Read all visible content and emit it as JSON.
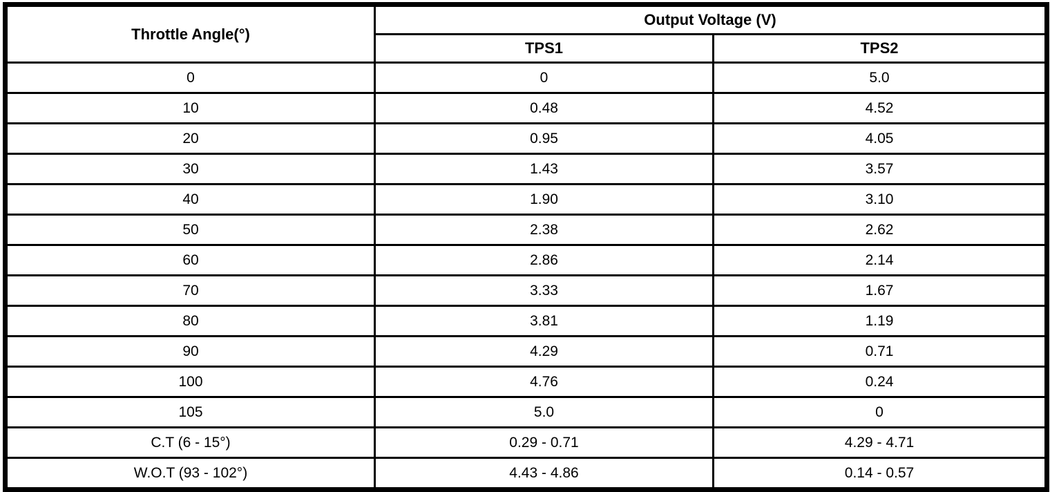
{
  "table": {
    "angle_header": "Throttle Angle(°)",
    "group_header": "Output Voltage (V)",
    "sub_headers": [
      "TPS1",
      "TPS2"
    ],
    "rows": [
      {
        "angle": "0",
        "tps1": "0",
        "tps2": "5.0"
      },
      {
        "angle": "10",
        "tps1": "0.48",
        "tps2": "4.52"
      },
      {
        "angle": "20",
        "tps1": "0.95",
        "tps2": "4.05"
      },
      {
        "angle": "30",
        "tps1": "1.43",
        "tps2": "3.57"
      },
      {
        "angle": "40",
        "tps1": "1.90",
        "tps2": "3.10"
      },
      {
        "angle": "50",
        "tps1": "2.38",
        "tps2": "2.62"
      },
      {
        "angle": "60",
        "tps1": "2.86",
        "tps2": "2.14"
      },
      {
        "angle": "70",
        "tps1": "3.33",
        "tps2": "1.67"
      },
      {
        "angle": "80",
        "tps1": "3.81",
        "tps2": "1.19"
      },
      {
        "angle": "90",
        "tps1": "4.29",
        "tps2": "0.71"
      },
      {
        "angle": "100",
        "tps1": "4.76",
        "tps2": "0.24"
      },
      {
        "angle": "105",
        "tps1": "5.0",
        "tps2": "0"
      },
      {
        "angle": "C.T (6 - 15°)",
        "tps1": "0.29 - 0.71",
        "tps2": "4.29 - 4.71"
      },
      {
        "angle": "W.O.T (93 - 102°)",
        "tps1": "4.43 - 4.86",
        "tps2": "0.14 - 0.57"
      }
    ]
  },
  "chart_data": {
    "type": "table",
    "title": "Output Voltage (V)",
    "columns": [
      "Throttle Angle(°)",
      "TPS1",
      "TPS2"
    ],
    "categories": [
      "0",
      "10",
      "20",
      "30",
      "40",
      "50",
      "60",
      "70",
      "80",
      "90",
      "100",
      "105",
      "C.T (6 - 15°)",
      "W.O.T (93 - 102°)"
    ],
    "series": [
      {
        "name": "TPS1",
        "values": [
          "0",
          "0.48",
          "0.95",
          "1.43",
          "1.90",
          "2.38",
          "2.86",
          "3.33",
          "3.81",
          "4.29",
          "4.76",
          "5.0",
          "0.29 - 0.71",
          "4.43 - 4.86"
        ]
      },
      {
        "name": "TPS2",
        "values": [
          "5.0",
          "4.52",
          "4.05",
          "3.57",
          "3.10",
          "2.62",
          "2.14",
          "1.67",
          "1.19",
          "0.71",
          "0.24",
          "0",
          "4.29 - 4.71",
          "0.14 - 0.57"
        ]
      }
    ],
    "colors": {
      "border": "#000000",
      "background": "#ffffff",
      "text": "#000000"
    }
  }
}
